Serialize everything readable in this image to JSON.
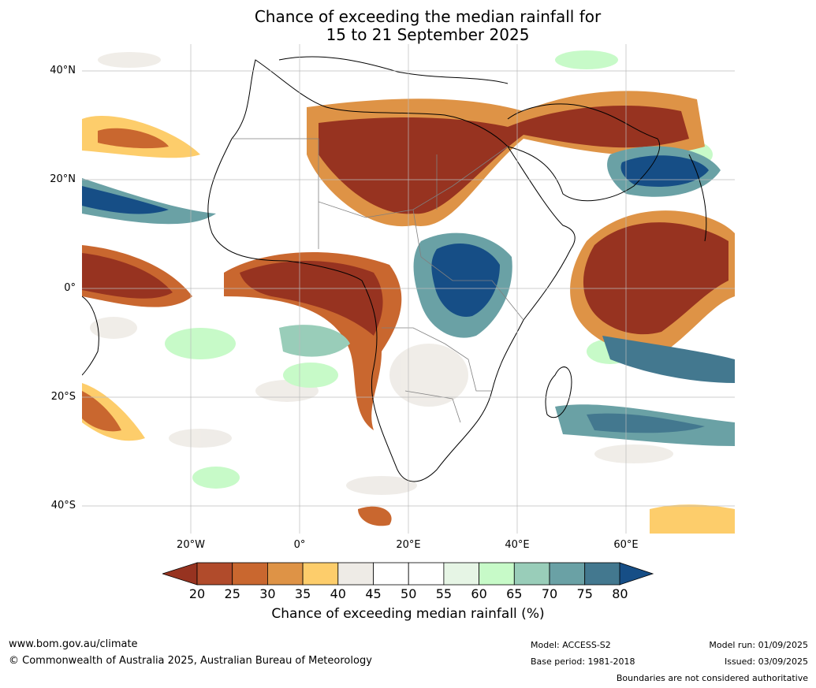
{
  "title": {
    "line1": "Chance of exceeding the median rainfall for",
    "line2": "15 to 21 September 2025"
  },
  "map": {
    "region": "Africa",
    "y_ticks": [
      "40°N",
      "20°N",
      "0°",
      "20°S",
      "40°S"
    ],
    "x_ticks": [
      "20°W",
      "0°",
      "20°E",
      "40°E",
      "60°E"
    ]
  },
  "colorbar": {
    "ticks": [
      "20",
      "25",
      "30",
      "35",
      "40",
      "45",
      "50",
      "55",
      "60",
      "65",
      "70",
      "75",
      "80"
    ],
    "colors": [
      "#973320",
      "#b14b2b",
      "#c9672f",
      "#de9346",
      "#fdcd6b",
      "#eeebe6",
      "#ffffff",
      "#ffffff",
      "#e6f5e5",
      "#c7fac8",
      "#99cdb9",
      "#6aa1a5",
      "#43788f",
      "#164e86"
    ],
    "label": "Chance of exceeding median rainfall (%)"
  },
  "footer": {
    "website": "www.bom.gov.au/climate",
    "copyright": "© Commonwealth of Australia 2025, Australian Bureau of Meteorology",
    "model": "Model: ACCESS-S2",
    "base_period": "Base period: 1981-2018",
    "model_run": "Model run: 01/09/2025",
    "issued": "Issued: 03/09/2025",
    "disclaimer": "Boundaries are not considered authoritative"
  }
}
